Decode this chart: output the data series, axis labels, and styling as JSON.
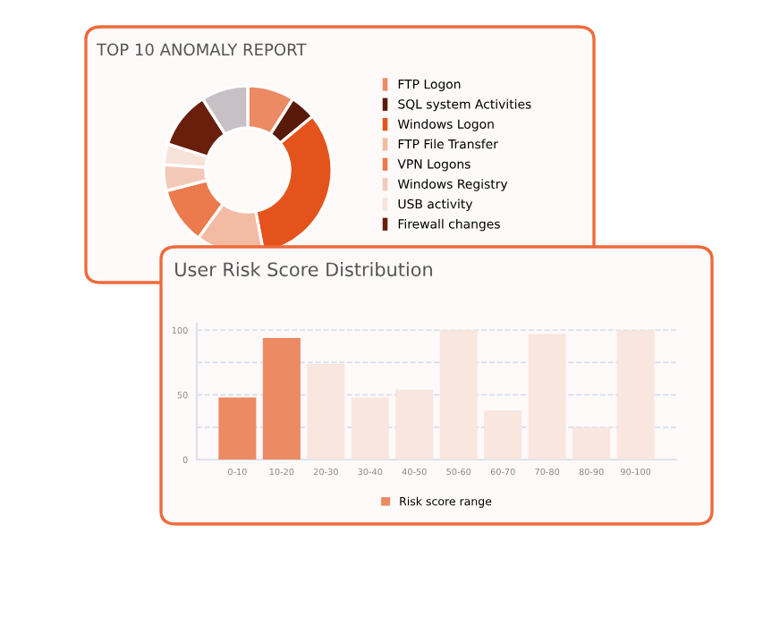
{
  "chart_data": [
    {
      "type": "donut",
      "title": "TOP 10 ANOMALY REPORT",
      "categories": [
        "FTP Logon",
        "SQL system Activities",
        "Windows Logon",
        "FTP File Transfer",
        "VPN Logons",
        "Windows Registry",
        "USB activity",
        "Firewall changes",
        null
      ],
      "values": [
        9,
        5,
        33,
        13,
        11,
        5,
        4,
        11,
        9
      ],
      "colors": [
        "#ec8a64",
        "#5a1a0a",
        "#e4531c",
        "#f4bba4",
        "#eb7a4c",
        "#f3c9b8",
        "#f8e3da",
        "#6a1e0c",
        "#c8c0c4"
      ],
      "legend": "right"
    },
    {
      "type": "bar",
      "title": "User Risk Score Distribution",
      "categories": [
        "0-10",
        "10-20",
        "20-30",
        "30-40",
        "40-50",
        "50-60",
        "60-70",
        "70-80",
        "80-90",
        "90-100"
      ],
      "series": [
        {
          "name": "Risk score range",
          "color": "#ec8a64",
          "values": [
            48,
            94,
            74,
            48,
            54,
            100,
            38,
            97,
            25,
            100
          ],
          "colors": [
            "#ec8a64",
            "#ec8a64",
            "#f8e6df",
            "#f8e6df",
            "#f8e6df",
            "#f8e6df",
            "#f8e6df",
            "#f8e6df",
            "#f8e6df",
            "#f8e6df"
          ]
        }
      ],
      "ylim": [
        0,
        105
      ],
      "yticks": [
        0,
        {
          "value": 25,
          "label": null
        },
        50,
        {
          "value": 75,
          "label": null
        },
        100
      ],
      "grid": "y",
      "legend": "bottom"
    }
  ]
}
